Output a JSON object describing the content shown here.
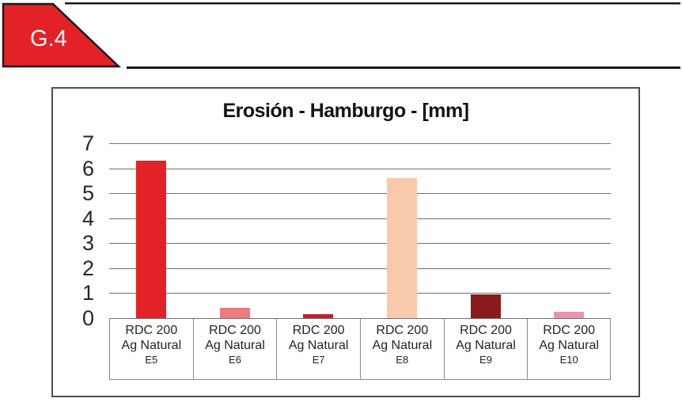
{
  "banner": {
    "label": "G.4",
    "fill_color": "#e32227",
    "outline_color": "#1b1718"
  },
  "decor": {
    "top_rule_color": "#1b1718",
    "mid_rule_color": "#1b1718"
  },
  "chart_data": {
    "type": "bar",
    "title": "Erosión - Hamburgo - [mm]",
    "xlabel": "",
    "ylabel": "",
    "ylim": [
      0,
      7
    ],
    "yticks": [
      0,
      1,
      2,
      3,
      4,
      5,
      6,
      7
    ],
    "grid": true,
    "legend": false,
    "categories": [
      {
        "line1": "RDC 200",
        "line2": "Ag Natural",
        "line3": "E5"
      },
      {
        "line1": "RDC 200",
        "line2": "Ag Natural",
        "line3": "E6"
      },
      {
        "line1": "RDC 200",
        "line2": "Ag Natural",
        "line3": "E7"
      },
      {
        "line1": "RDC 200",
        "line2": "Ag Natural",
        "line3": "E8"
      },
      {
        "line1": "RDC 200",
        "line2": "Ag Natural",
        "line3": "E9"
      },
      {
        "line1": "RDC 200",
        "line2": "Ag Natural",
        "line3": "E10"
      }
    ],
    "values": [
      6.3,
      0.4,
      0.15,
      5.6,
      0.95,
      0.25
    ],
    "bar_colors": [
      "#e32227",
      "#ec7c7c",
      "#c02025",
      "#f8c9ab",
      "#8b1b1b",
      "#e794af"
    ]
  }
}
